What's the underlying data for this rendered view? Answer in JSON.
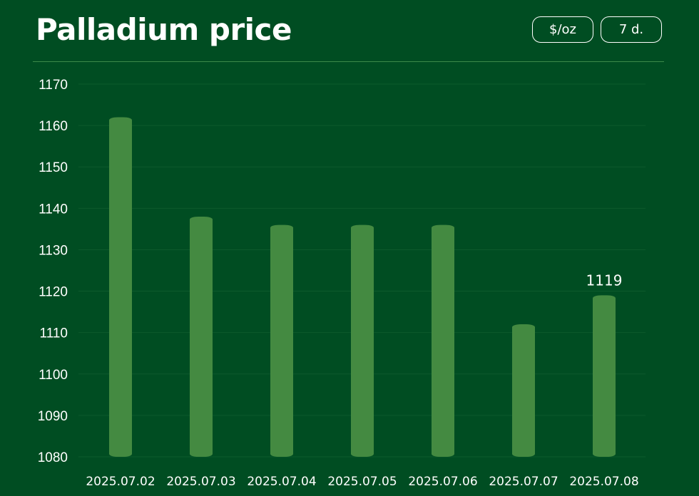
{
  "header": {
    "title": "Palladium price",
    "unit_button": "$/oz",
    "period_button": "7 d."
  },
  "colors": {
    "background": "#004d22",
    "bar": "#448a41",
    "divider": "#3d8a4a",
    "text": "#ffffff"
  },
  "chart_data": {
    "type": "bar",
    "categories": [
      "2025.07.02",
      "2025.07.03",
      "2025.07.04",
      "2025.07.05",
      "2025.07.06",
      "2025.07.07",
      "2025.07.08"
    ],
    "values": [
      1162,
      1138,
      1136,
      1136,
      1136,
      1112,
      1119
    ],
    "ylim": [
      1080,
      1170
    ],
    "yticks": [
      1080,
      1090,
      1100,
      1110,
      1120,
      1130,
      1140,
      1150,
      1160,
      1170
    ],
    "grid": true,
    "data_labels": [
      {
        "category": "2025.07.08",
        "text": "1119"
      }
    ]
  }
}
